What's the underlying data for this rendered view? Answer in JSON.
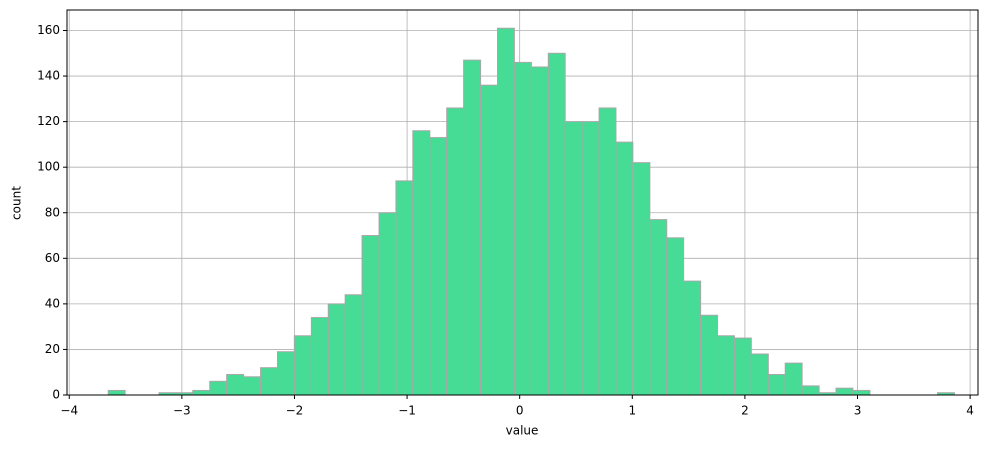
{
  "chart_data": {
    "type": "histogram",
    "x_label": "value",
    "y_label": "count",
    "bins": [
      -3.654,
      -3.504,
      -3.353,
      -3.203,
      -3.053,
      -2.903,
      -2.752,
      -2.602,
      -2.452,
      -2.301,
      -2.151,
      -2.001,
      -1.85,
      -1.7,
      -1.55,
      -1.4,
      -1.249,
      -1.099,
      -0.949,
      -0.798,
      -0.648,
      -0.498,
      -0.347,
      -0.197,
      -0.047,
      0.104,
      0.254,
      0.404,
      0.554,
      0.705,
      0.855,
      1.005,
      1.156,
      1.306,
      1.456,
      1.607,
      1.757,
      1.907,
      2.057,
      2.208,
      2.358,
      2.508,
      2.659,
      2.809,
      2.959,
      3.11,
      3.26,
      3.41,
      3.56,
      3.711,
      3.861
    ],
    "counts": [
      2,
      0,
      0,
      1,
      1,
      2,
      6,
      9,
      8,
      12,
      19,
      26,
      34,
      40,
      44,
      70,
      80,
      94,
      116,
      113,
      126,
      147,
      136,
      161,
      146,
      144,
      150,
      120,
      120,
      126,
      111,
      102,
      77,
      69,
      50,
      35,
      26,
      25,
      18,
      9,
      14,
      4,
      1,
      3,
      2,
      0,
      0,
      0,
      0,
      1
    ],
    "color": "#46dc96",
    "edgecolor": "#a8a8a8",
    "xlim": [
      -4.02,
      4.07
    ],
    "ylim": [
      0,
      169
    ],
    "xticks": [
      {
        "value": -4,
        "label": "−4"
      },
      {
        "value": -3,
        "label": "−3"
      },
      {
        "value": -2,
        "label": "−2"
      },
      {
        "value": -1,
        "label": "−1"
      },
      0,
      1,
      2,
      3,
      4
    ],
    "yticks": [
      0,
      20,
      40,
      60,
      80,
      100,
      120,
      140,
      160
    ],
    "grid": true
  }
}
